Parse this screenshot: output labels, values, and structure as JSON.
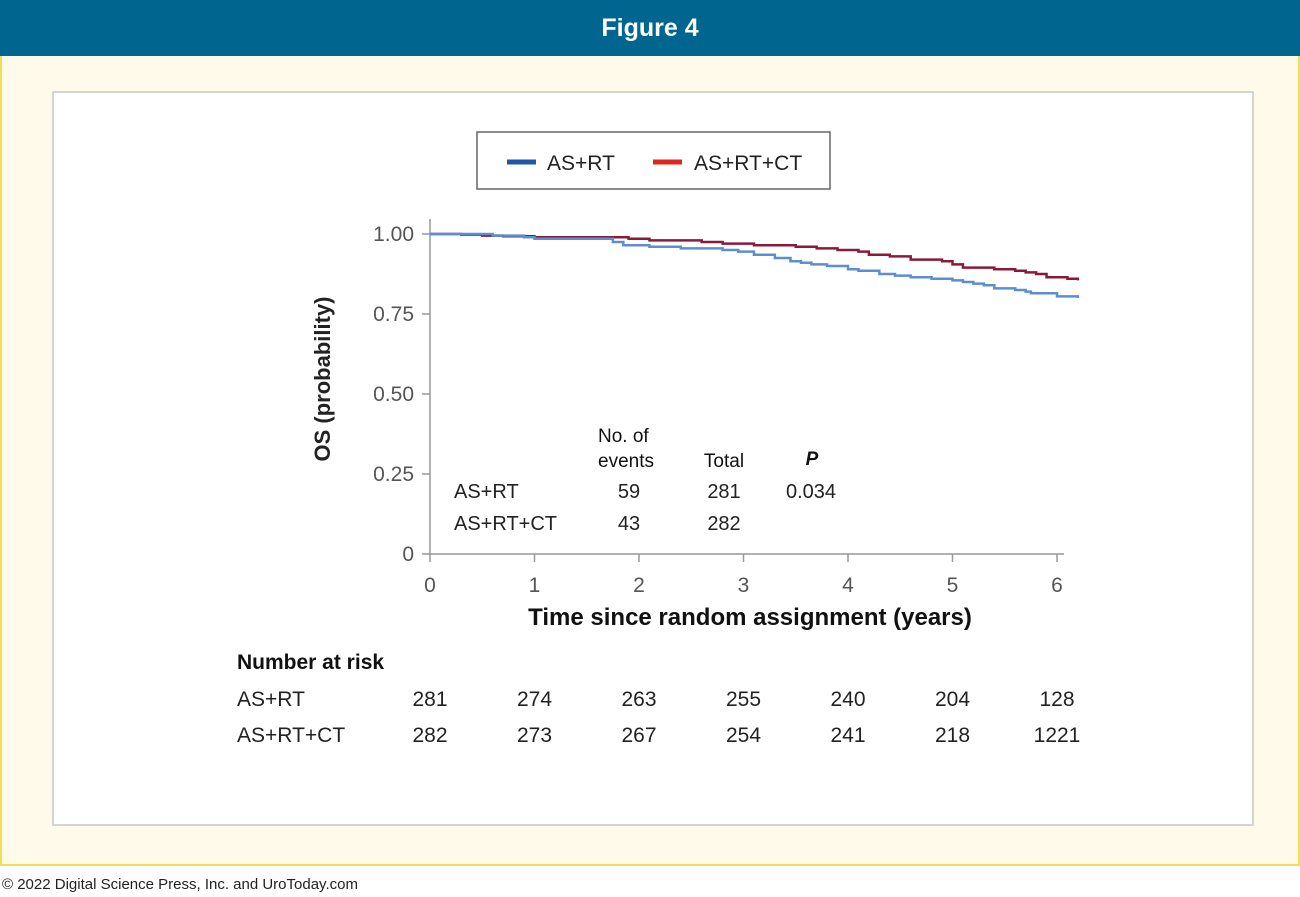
{
  "header": {
    "title": "Figure 4"
  },
  "footer": {
    "copyright": "© 2022 Digital Science Press, Inc. and UroToday.com"
  },
  "colors": {
    "header_bg": "#00668f",
    "frame_bg": "#fffaea",
    "frame_border": "#f5dd55"
  },
  "chart_data": {
    "type": "line",
    "title": "",
    "xlabel": "Time since random assignment (years)",
    "ylabel": "OS (probability)",
    "xlim": [
      0,
      6.2
    ],
    "ylim": [
      0,
      1.0
    ],
    "x_ticks": [
      "0",
      "1",
      "2",
      "3",
      "4",
      "5",
      "6"
    ],
    "y_ticks": [
      "0",
      "0.25",
      "0.50",
      "0.75",
      "1.00"
    ],
    "legend_position": "top-center",
    "series": [
      {
        "name": "AS+RT",
        "color": "#1f4e99",
        "x": [
          0,
          0.55,
          0.6,
          0.9,
          1.0,
          1.7,
          1.75,
          1.85,
          2.1,
          2.4,
          2.6,
          2.8,
          2.95,
          3.1,
          3.3,
          3.45,
          3.55,
          3.65,
          3.8,
          4.0,
          4.1,
          4.3,
          4.45,
          4.6,
          4.8,
          5.0,
          5.1,
          5.2,
          5.3,
          5.4,
          5.6,
          5.7,
          5.75,
          6.0,
          6.2
        ],
        "y": [
          1.0,
          1.0,
          0.995,
          0.99,
          0.985,
          0.985,
          0.975,
          0.965,
          0.96,
          0.955,
          0.955,
          0.95,
          0.945,
          0.935,
          0.925,
          0.915,
          0.91,
          0.905,
          0.9,
          0.89,
          0.885,
          0.875,
          0.87,
          0.865,
          0.86,
          0.855,
          0.85,
          0.845,
          0.84,
          0.83,
          0.825,
          0.82,
          0.815,
          0.805,
          0.8
        ]
      },
      {
        "name": "AS+RT+CT",
        "color": "#8b1a3a",
        "x": [
          0,
          0.3,
          0.5,
          0.7,
          1.0,
          1.8,
          1.9,
          2.1,
          2.5,
          2.6,
          2.8,
          3.1,
          3.5,
          3.7,
          3.9,
          4.1,
          4.2,
          4.4,
          4.6,
          4.9,
          5.0,
          5.1,
          5.4,
          5.6,
          5.7,
          5.8,
          5.9,
          6.1,
          6.2
        ],
        "y": [
          1.0,
          0.998,
          0.995,
          0.993,
          0.99,
          0.99,
          0.985,
          0.98,
          0.98,
          0.975,
          0.97,
          0.965,
          0.96,
          0.955,
          0.95,
          0.945,
          0.935,
          0.93,
          0.92,
          0.915,
          0.905,
          0.895,
          0.89,
          0.885,
          0.88,
          0.875,
          0.865,
          0.86,
          0.855
        ]
      }
    ],
    "inset_table": {
      "headers": [
        "No. of",
        "events",
        "Total",
        "P"
      ],
      "rows": [
        {
          "group": "AS+RT",
          "events": "59",
          "total": "281",
          "p": "0.034"
        },
        {
          "group": "AS+RT+CT",
          "events": "43",
          "total": "282",
          "p": ""
        }
      ]
    },
    "risk_table": {
      "title": "Number at risk",
      "rows": [
        {
          "label": "AS+RT",
          "values": [
            "281",
            "274",
            "263",
            "255",
            "240",
            "204",
            "128"
          ]
        },
        {
          "label": "AS+RT+CT",
          "values": [
            "282",
            "273",
            "267",
            "254",
            "241",
            "218",
            "1221"
          ]
        }
      ]
    }
  }
}
